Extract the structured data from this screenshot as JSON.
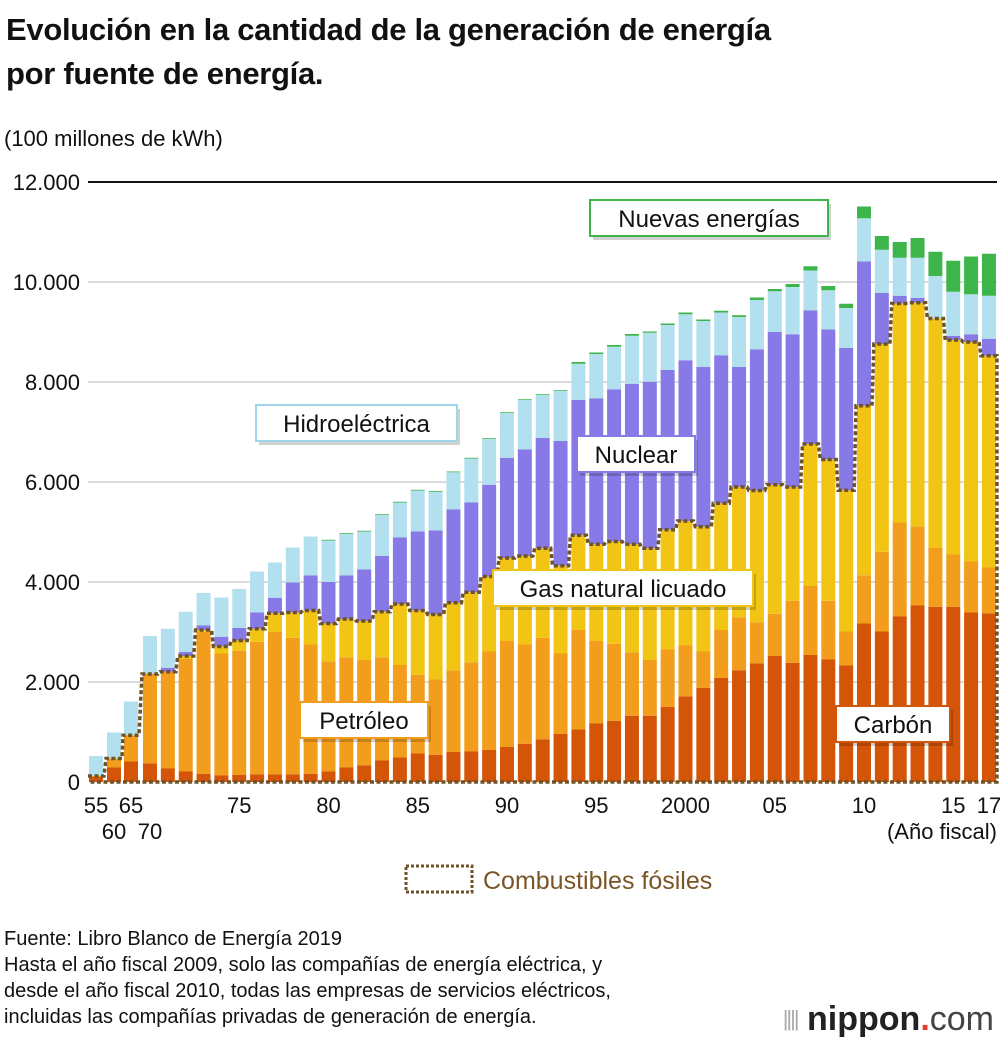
{
  "title_lines": [
    "Evolución en la cantidad de la generación de energía",
    "por fuente de energía."
  ],
  "unit": "(100 millones de kWh)",
  "footer": {
    "source": "Fuente: Libro Blanco de Energía 2019",
    "notes": [
      "Hasta el año fiscal 2009, solo las compañías de energía eléctrica, y",
      "desde el año fiscal 2010, todas las empresas de servicios eléctricos,",
      "incluidas las compañías privadas de generación de energía."
    ]
  },
  "logo": {
    "name": "nippon",
    "dot": ".",
    "suffix": "com"
  },
  "chart_data": {
    "type": "bar",
    "stacked": true,
    "ylabel": "(100 millones de kWh)",
    "xlabel": "(Año fiscal)",
    "ylim": [
      0,
      12000
    ],
    "yticks": [
      0,
      2000,
      4000,
      6000,
      8000,
      10000,
      12000
    ],
    "ytick_labels": [
      "0",
      "2.000",
      "4.000",
      "6.000",
      "8.000",
      "10.000",
      "12.000"
    ],
    "grid": true,
    "xtick_labels": [
      {
        "year": 1955,
        "label": "55",
        "row": 1
      },
      {
        "year": 1960,
        "label": "60",
        "row": 2
      },
      {
        "year": 1965,
        "label": "65",
        "row": 1
      },
      {
        "year": 1970,
        "label": "70",
        "row": 2
      },
      {
        "year": 1975,
        "label": "75",
        "row": 1
      },
      {
        "year": 1980,
        "label": "80",
        "row": 1
      },
      {
        "year": 1985,
        "label": "85",
        "row": 1
      },
      {
        "year": 1990,
        "label": "90",
        "row": 1
      },
      {
        "year": 1995,
        "label": "95",
        "row": 1
      },
      {
        "year": 2000,
        "label": "2000",
        "row": 1
      },
      {
        "year": 2005,
        "label": "05",
        "row": 1
      },
      {
        "year": 2010,
        "label": "10",
        "row": 1
      },
      {
        "year": 2015,
        "label": "15",
        "row": 1
      },
      {
        "year": 2017,
        "label": "17",
        "row": 1
      }
    ],
    "categories": [
      1955,
      1960,
      1965,
      1970,
      1971,
      1972,
      1973,
      1974,
      1975,
      1976,
      1977,
      1978,
      1979,
      1980,
      1981,
      1982,
      1983,
      1984,
      1985,
      1986,
      1987,
      1988,
      1989,
      1990,
      1991,
      1992,
      1993,
      1994,
      1995,
      1996,
      1997,
      1998,
      1999,
      2000,
      2001,
      2002,
      2003,
      2004,
      2005,
      2006,
      2007,
      2008,
      2009,
      2010,
      2011,
      2012,
      2013,
      2014,
      2015,
      2016,
      2017
    ],
    "series": [
      {
        "name": "Carbón",
        "color": "#d45508",
        "values": [
          100,
          290,
          410,
          375,
          270,
          210,
          165,
          130,
          140,
          155,
          155,
          155,
          165,
          210,
          290,
          335,
          430,
          490,
          570,
          545,
          600,
          610,
          640,
          700,
          765,
          855,
          960,
          1050,
          1170,
          1225,
          1325,
          1325,
          1505,
          1715,
          1885,
          2080,
          2235,
          2375,
          2520,
          2385,
          2540,
          2450,
          2330,
          3170,
          3010,
          3310,
          3530,
          3505,
          3505,
          3390,
          3375
        ]
      },
      {
        "name": "Petróleo",
        "color": "#f29d1b",
        "values": [
          20,
          180,
          525,
          1785,
          1935,
          2250,
          2835,
          2440,
          2485,
          2650,
          2845,
          2730,
          2585,
          2205,
          2205,
          2105,
          2065,
          1850,
          1575,
          1505,
          1635,
          1785,
          1970,
          2120,
          1985,
          2030,
          1610,
          1990,
          1650,
          1540,
          1270,
          1115,
          1145,
          1015,
          725,
          960,
          1060,
          820,
          845,
          1240,
          1380,
          1175,
          680,
          965,
          1595,
          1880,
          1585,
          1175,
          1045,
          1020,
          915
        ]
      },
      {
        "name": "Gas natural licuado",
        "color": "#f2c515",
        "values": [
          0,
          0,
          0,
          0,
          0,
          60,
          40,
          140,
          205,
          260,
          375,
          505,
          680,
          755,
          765,
          780,
          910,
          1220,
          1285,
          1300,
          1350,
          1400,
          1500,
          1660,
          1770,
          1790,
          1755,
          1895,
          1935,
          2045,
          2160,
          2235,
          2395,
          2490,
          2495,
          2535,
          2605,
          2635,
          2580,
          2275,
          2840,
          2825,
          2825,
          3390,
          4155,
          4380,
          4470,
          4590,
          4290,
          4390,
          4235
        ]
      },
      {
        "name": "Nuclear",
        "color": "#887ae6",
        "values": [
          0,
          0,
          0,
          0,
          80,
          80,
          95,
          195,
          250,
          325,
          310,
          600,
          700,
          830,
          870,
          1030,
          1115,
          1335,
          1580,
          1680,
          1870,
          1795,
          1835,
          2005,
          2130,
          2205,
          2495,
          2705,
          2920,
          3040,
          3210,
          3330,
          3195,
          3215,
          3195,
          2960,
          2400,
          2820,
          3055,
          3055,
          2670,
          2600,
          2845,
          2885,
          1020,
          155,
          95,
          0,
          80,
          155,
          340
        ]
      },
      {
        "name": "Hidroeléctrica",
        "color": "#b2e0ef",
        "values": [
          400,
          520,
          675,
          760,
          780,
          805,
          645,
          785,
          780,
          820,
          705,
          700,
          780,
          830,
          835,
          760,
          820,
          695,
          820,
          775,
          740,
          880,
          915,
          895,
          990,
          860,
          1000,
          725,
          885,
          855,
          960,
          980,
          900,
          920,
          920,
          855,
          1000,
          990,
          815,
          945,
          800,
          785,
          800,
          865,
          865,
          760,
          805,
          850,
          885,
          800,
          860
        ]
      },
      {
        "name": "Nuevas energías",
        "color": "#3db54a",
        "values": [
          0,
          0,
          0,
          0,
          0,
          0,
          0,
          0,
          0,
          0,
          0,
          0,
          0,
          15,
          15,
          15,
          15,
          15,
          15,
          15,
          15,
          15,
          15,
          15,
          15,
          15,
          15,
          35,
          30,
          35,
          35,
          25,
          30,
          35,
          30,
          35,
          35,
          50,
          45,
          60,
          85,
          85,
          85,
          235,
          275,
          315,
          395,
          485,
          620,
          755,
          840
        ]
      }
    ],
    "fossil_outline": {
      "label": "Combustibles fósiles",
      "color": "#6e5228",
      "text_color": "#7a5526",
      "covers": [
        "Carbón",
        "Petróleo",
        "Gas natural licuado"
      ]
    },
    "series_labels": [
      {
        "text": "Nuevas energías",
        "border": "#3db54a"
      },
      {
        "text": "Hidroeléctrica",
        "border": "#9fd6ea"
      },
      {
        "text": "Nuclear",
        "border": "#887ae6"
      },
      {
        "text": "Gas natural licuado",
        "border": "#f2c515"
      },
      {
        "text": "Petróleo",
        "border": "#f29d1b"
      },
      {
        "text": "Carbón",
        "border": "#d45508"
      }
    ]
  }
}
